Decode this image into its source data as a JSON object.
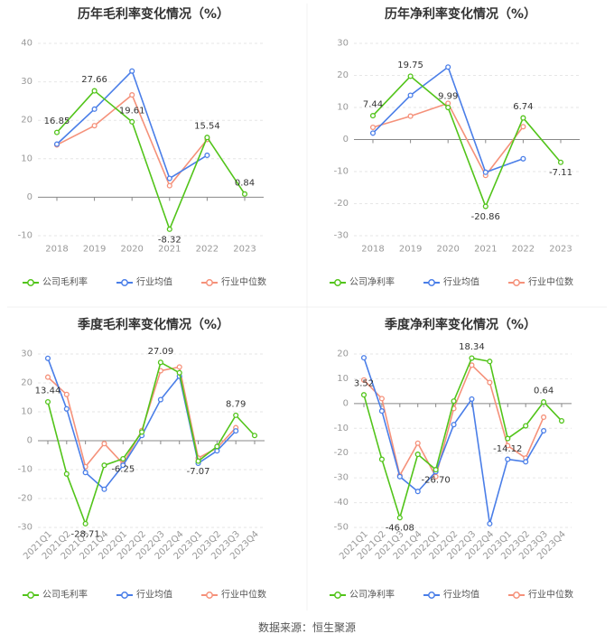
{
  "colors": {
    "green": "#52c41a",
    "blue": "#4a7ee8",
    "orange": "#f5917a",
    "grid": "#e6e6e6",
    "axis": "#999999",
    "text": "#333333"
  },
  "footer": {
    "source_label": "数据来源：恒生聚源"
  },
  "chart_data": [
    {
      "type": "line",
      "title": "历年毛利率变化情况（%）",
      "categories": [
        "2018",
        "2019",
        "2020",
        "2021",
        "2022",
        "2023"
      ],
      "ylim": [
        -10,
        40
      ],
      "yticks": [
        40,
        30,
        20,
        10,
        0,
        -10
      ],
      "rotate_xlabels": false,
      "series": [
        {
          "name": "公司毛利率",
          "color_key": "green",
          "values": [
            16.85,
            27.66,
            19.61,
            -8.32,
            15.54,
            0.84
          ],
          "labels": [
            "16.85",
            "27.66",
            "19.61",
            "-8.32",
            "15.54",
            "0.84"
          ]
        },
        {
          "name": "行业均值",
          "color_key": "blue",
          "values": [
            13.8,
            22.9,
            32.8,
            4.9,
            10.9,
            null
          ],
          "labels": []
        },
        {
          "name": "行业中位数",
          "color_key": "orange",
          "values": [
            13.6,
            18.6,
            26.6,
            3.0,
            15.0,
            null
          ],
          "labels": []
        }
      ]
    },
    {
      "type": "line",
      "title": "历年净利率变化情况（%）",
      "categories": [
        "2018",
        "2019",
        "2020",
        "2021",
        "2022",
        "2023"
      ],
      "ylim": [
        -30,
        30
      ],
      "yticks": [
        30,
        20,
        10,
        0,
        -10,
        -20,
        -30
      ],
      "rotate_xlabels": false,
      "series": [
        {
          "name": "公司净利率",
          "color_key": "green",
          "values": [
            7.44,
            19.75,
            9.99,
            -20.86,
            6.74,
            -7.11
          ],
          "labels": [
            "7.44",
            "19.75",
            "9.99",
            "-20.86",
            "6.74",
            "-7.11"
          ]
        },
        {
          "name": "行业均值",
          "color_key": "blue",
          "values": [
            2.0,
            13.8,
            22.6,
            -10.2,
            -6.0,
            null
          ],
          "labels": []
        },
        {
          "name": "行业中位数",
          "color_key": "orange",
          "values": [
            3.8,
            7.3,
            11.3,
            -11.2,
            4.0,
            null
          ],
          "labels": []
        }
      ]
    },
    {
      "type": "line",
      "title": "季度毛利率变化情况（%）",
      "categories": [
        "2021Q1",
        "2021Q2",
        "2021Q3",
        "2021Q4",
        "2022Q1",
        "2022Q2",
        "2022Q3",
        "2022Q4",
        "2023Q1",
        "2023Q2",
        "2023Q3",
        "2023Q4"
      ],
      "ylim": [
        -30,
        30
      ],
      "yticks": [
        30,
        20,
        10,
        0,
        -10,
        -20,
        -30
      ],
      "rotate_xlabels": true,
      "series": [
        {
          "name": "公司毛利率",
          "color_key": "green",
          "values": [
            13.44,
            -11.5,
            -28.71,
            -8.5,
            -6.25,
            3.0,
            27.09,
            23.5,
            -7.07,
            -2.0,
            8.79,
            1.8
          ],
          "labels": [
            "13.44",
            "",
            "-28.71",
            "",
            "-6.25",
            "",
            "27.09",
            "",
            "-7.07",
            "",
            "8.79",
            ""
          ]
        },
        {
          "name": "行业均值",
          "color_key": "blue",
          "values": [
            28.5,
            11.0,
            -11.0,
            -16.8,
            -8.5,
            1.8,
            14.2,
            22.3,
            -7.8,
            -3.5,
            3.4,
            null
          ],
          "labels": []
        },
        {
          "name": "行业中位数",
          "color_key": "orange",
          "values": [
            22.0,
            16.0,
            -9.0,
            -1.0,
            -8.0,
            3.5,
            24.2,
            25.5,
            -6.0,
            -2.5,
            4.5,
            null
          ],
          "labels": []
        }
      ]
    },
    {
      "type": "line",
      "title": "季度净利率变化情况（%）",
      "categories": [
        "2021Q1",
        "2021Q2",
        "2021Q3",
        "2021Q4",
        "2022Q1",
        "2022Q2",
        "2022Q3",
        "2022Q4",
        "2023Q1",
        "2023Q2",
        "2023Q3",
        "2023Q4"
      ],
      "ylim": [
        -50,
        20
      ],
      "yticks": [
        20,
        10,
        0,
        -10,
        -20,
        -30,
        -40,
        -50
      ],
      "rotate_xlabels": true,
      "series": [
        {
          "name": "公司净利率",
          "color_key": "green",
          "values": [
            3.52,
            -22.5,
            -46.08,
            -20.5,
            -26.7,
            1.0,
            18.34,
            17.0,
            -14.12,
            -9.0,
            0.64,
            -7.0
          ],
          "labels": [
            "3.52",
            "",
            "-46.08",
            "",
            "-26.70",
            "",
            "18.34",
            "",
            "-14.12",
            "",
            "0.64",
            ""
          ]
        },
        {
          "name": "行业均值",
          "color_key": "blue",
          "values": [
            18.5,
            -3.0,
            -29.5,
            -35.5,
            -27.5,
            -8.5,
            1.8,
            -48.5,
            -22.5,
            -23.5,
            -11.0,
            null
          ],
          "labels": []
        },
        {
          "name": "行业中位数",
          "color_key": "orange",
          "values": [
            9.5,
            2.0,
            -29.0,
            -16.0,
            -29.5,
            -2.0,
            15.5,
            8.5,
            -17.0,
            -22.0,
            -5.5,
            null
          ],
          "labels": []
        }
      ]
    }
  ]
}
